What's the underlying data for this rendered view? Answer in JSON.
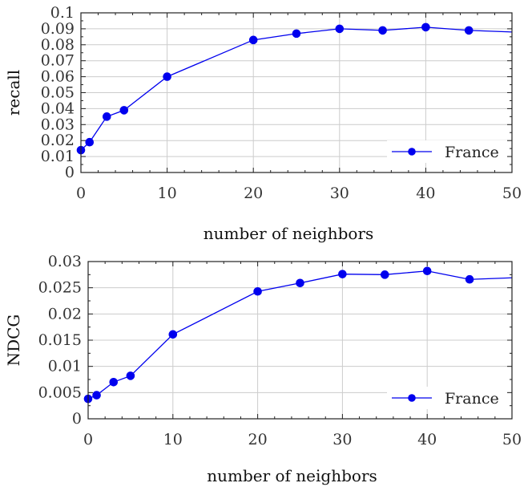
{
  "chart_data": [
    {
      "type": "line",
      "xlabel": "number of neighbors",
      "ylabel": "recall",
      "xlim": [
        0,
        50
      ],
      "ylim": [
        0,
        0.1
      ],
      "xticks": [
        0,
        10,
        20,
        30,
        40,
        50
      ],
      "xtick_labels": [
        "0",
        "10",
        "20",
        "30",
        "40",
        "50"
      ],
      "yticks": [
        0,
        0.01,
        0.02,
        0.03,
        0.04,
        0.05,
        0.06,
        0.07,
        0.08,
        0.09,
        0.1
      ],
      "ytick_labels": [
        "0",
        "0.01",
        "0.02",
        "0.03",
        "0.04",
        "0.05",
        "0.06",
        "0.07",
        "0.08",
        "0.09",
        "0.1"
      ],
      "grid": true,
      "legend_position": "lower-right",
      "series": [
        {
          "name": "France",
          "color": "#0000ee",
          "x": [
            0,
            1,
            3,
            5,
            10,
            20,
            25,
            30,
            35,
            40,
            45,
            50
          ],
          "y": [
            0.014,
            0.019,
            0.035,
            0.039,
            0.06,
            0.083,
            0.087,
            0.09,
            0.089,
            0.091,
            0.089,
            0.088
          ],
          "markers": [
            true,
            true,
            true,
            true,
            true,
            true,
            true,
            true,
            true,
            true,
            true,
            false
          ]
        }
      ]
    },
    {
      "type": "line",
      "xlabel": "number of neighbors",
      "ylabel": "NDCG",
      "xlim": [
        0,
        50
      ],
      "ylim": [
        0,
        0.03
      ],
      "xticks": [
        0,
        10,
        20,
        30,
        40,
        50
      ],
      "xtick_labels": [
        "0",
        "10",
        "20",
        "30",
        "40",
        "50"
      ],
      "yticks": [
        0,
        0.005,
        0.01,
        0.015,
        0.02,
        0.025,
        0.03
      ],
      "ytick_labels": [
        "0",
        "0.005",
        "0.01",
        "0.015",
        "0.02",
        "0.025",
        "0.03"
      ],
      "grid": true,
      "legend_position": "lower-right",
      "series": [
        {
          "name": "France",
          "color": "#0000ee",
          "x": [
            0,
            1,
            3,
            5,
            10,
            20,
            25,
            30,
            35,
            40,
            45,
            50
          ],
          "y": [
            0.0038,
            0.0045,
            0.007,
            0.0082,
            0.0161,
            0.0243,
            0.0259,
            0.0276,
            0.0275,
            0.0282,
            0.0266,
            0.0269
          ],
          "markers": [
            true,
            true,
            true,
            true,
            true,
            true,
            true,
            true,
            true,
            true,
            true,
            false
          ]
        }
      ]
    }
  ]
}
